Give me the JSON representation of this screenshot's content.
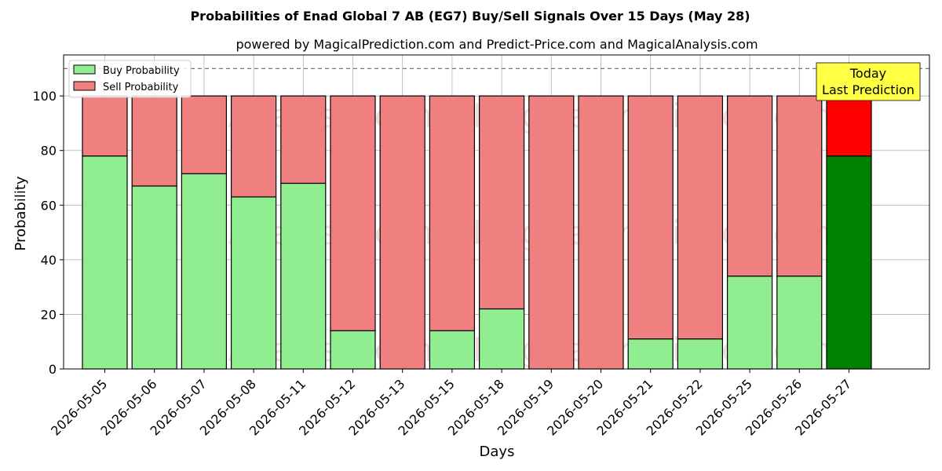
{
  "chart_data": {
    "type": "bar",
    "stacked": true,
    "title": "Probabilities of Enad Global 7 AB (EG7) Buy/Sell Signals Over 15 Days (May 28)",
    "subtitle": "powered by MagicalPrediction.com and Predict-Price.com and MagicalAnalysis.com",
    "xlabel": "Days",
    "ylabel": "Probability",
    "ylim": [
      0,
      115
    ],
    "yticks": [
      0,
      20,
      40,
      60,
      80,
      100
    ],
    "reference_line": 110,
    "grid": true,
    "legend_position": "top-left",
    "categories": [
      "2026-05-05",
      "2026-05-06",
      "2026-05-07",
      "2026-05-08",
      "2026-05-11",
      "2026-05-12",
      "2026-05-13",
      "2026-05-15",
      "2026-05-18",
      "2026-05-19",
      "2026-05-20",
      "2026-05-21",
      "2026-05-22",
      "2026-05-25",
      "2026-05-26",
      "2026-05-27"
    ],
    "series": [
      {
        "name": "Buy Probability",
        "color": "#90ee90",
        "highlight_color": "#008000",
        "values": [
          78,
          67,
          71.5,
          63,
          68,
          14,
          0,
          14,
          22,
          0,
          0,
          11,
          11,
          34,
          34,
          78
        ]
      },
      {
        "name": "Sell Probability",
        "color": "#f08080",
        "highlight_color": "#ff0000",
        "values": [
          22,
          33,
          28.5,
          37,
          32,
          86,
          100,
          86,
          78,
          100,
          100,
          89,
          89,
          66,
          66,
          22
        ]
      }
    ],
    "highlight_index": 15,
    "annotation": {
      "line1": "Today",
      "line2": "Last Prediction",
      "color": "#ffff44"
    },
    "watermarks": [
      "MagicalAnalysis.com",
      "MagicalPrediction.com"
    ]
  }
}
